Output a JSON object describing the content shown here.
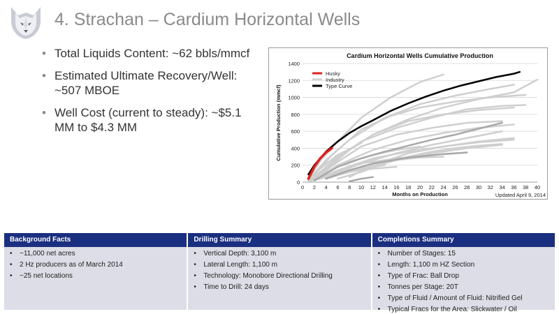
{
  "slide": {
    "title": "4. Strachan – Cardium Horizontal Wells",
    "bullets": [
      "Total Liquids Content: ~62 bbls/mmcf",
      "Estimated Ultimate Recovery/Well: ~507 MBOE",
      "Well Cost (current to steady): ~$5.1 MM to $4.3 MM"
    ],
    "logo_icon": "husky-dog-logo"
  },
  "chart_data": {
    "type": "line",
    "title": "Cardium Horizontal Wells Cumulative Production",
    "xlabel": "Months on Production",
    "ylabel": "Cumulative Production (mmcf)",
    "xlim": [
      0,
      40
    ],
    "ylim": [
      0,
      1400
    ],
    "xticks": [
      0,
      2,
      4,
      6,
      8,
      10,
      12,
      14,
      16,
      18,
      20,
      22,
      24,
      26,
      28,
      30,
      32,
      34,
      36,
      38,
      40
    ],
    "yticks": [
      0,
      200,
      400,
      600,
      800,
      1000,
      1200,
      1400
    ],
    "grid": true,
    "legend_position": "top-left",
    "footnote": "Updated April 9, 2014",
    "series": [
      {
        "name": "Husky",
        "color": "#e0201c",
        "width": 3.5,
        "x": [
          1,
          2,
          3,
          4,
          5
        ],
        "y": [
          40,
          180,
          280,
          350,
          400
        ]
      },
      {
        "name": "Industry",
        "color": "#cfcfcf",
        "width": 2.5,
        "lines": [
          {
            "x": [
              1,
              3,
              6,
              10,
              15,
              20,
              24
            ],
            "y": [
              30,
              250,
              480,
              760,
              1000,
              1180,
              1270
            ]
          },
          {
            "x": [
              1,
              4,
              8,
              14,
              20,
              26,
              32,
              36
            ],
            "y": [
              20,
              260,
              500,
              760,
              920,
              1020,
              1100,
              1150
            ]
          },
          {
            "x": [
              2,
              5,
              10,
              15,
              20,
              26,
              32,
              38
            ],
            "y": [
              80,
              320,
              620,
              780,
              880,
              950,
              1000,
              1030
            ]
          },
          {
            "x": [
              2,
              6,
              12,
              18,
              24,
              30,
              36
            ],
            "y": [
              60,
              300,
              560,
              720,
              800,
              850,
              880
            ]
          },
          {
            "x": [
              2,
              6,
              10,
              16,
              22,
              28,
              34,
              38
            ],
            "y": [
              40,
              280,
              480,
              640,
              760,
              860,
              900,
              910
            ]
          },
          {
            "x": [
              4,
              8,
              12,
              18,
              24,
              30,
              36,
              40
            ],
            "y": [
              150,
              380,
              560,
              740,
              880,
              980,
              1060,
              1210
            ]
          },
          {
            "x": [
              2,
              6,
              10,
              16,
              22,
              28,
              34
            ],
            "y": [
              40,
              240,
              420,
              560,
              640,
              700,
              720
            ]
          },
          {
            "x": [
              2,
              6,
              12,
              18,
              24,
              30,
              36
            ],
            "y": [
              30,
              200,
              380,
              500,
              580,
              640,
              680
            ]
          },
          {
            "x": [
              4,
              10,
              16,
              22,
              28,
              34
            ],
            "y": [
              60,
              220,
              340,
              440,
              520,
              600
            ]
          },
          {
            "x": [
              2,
              6,
              12,
              18,
              24,
              30,
              36
            ],
            "y": [
              20,
              140,
              280,
              360,
              420,
              470,
              500
            ]
          },
          {
            "x": [
              4,
              10,
              16,
              22,
              28,
              34
            ],
            "y": [
              40,
              160,
              260,
              340,
              400,
              440
            ]
          },
          {
            "x": [
              1,
              4,
              8,
              12,
              16,
              20
            ],
            "y": [
              20,
              120,
              240,
              320,
              380,
              420
            ]
          },
          {
            "x": [
              2,
              6,
              10,
              16,
              22,
              28
            ],
            "y": [
              20,
              120,
              220,
              280,
              320,
              350
            ]
          },
          {
            "x": [
              4,
              8,
              12,
              16,
              20,
              24
            ],
            "y": [
              40,
              140,
              220,
              260,
              290,
              300
            ]
          },
          {
            "x": [
              6,
              10,
              14,
              18,
              22,
              26,
              30,
              34
            ],
            "y": [
              40,
              120,
              220,
              300,
              360,
              400,
              430,
              450
            ]
          },
          {
            "x": [
              8,
              12,
              18,
              24,
              30,
              36
            ],
            "y": [
              60,
              200,
              340,
              420,
              480,
              520
            ]
          },
          {
            "x": [
              1,
              3,
              6,
              10
            ],
            "y": [
              20,
              160,
              320,
              460
            ]
          },
          {
            "x": [
              2,
              6,
              10,
              14
            ],
            "y": [
              20,
              100,
              160,
              200
            ]
          },
          {
            "x": [
              1,
              4,
              8,
              12,
              16
            ],
            "y": [
              10,
              60,
              120,
              160,
              180
            ]
          }
        ],
        "dark_lines": [
          {
            "x": [
              2,
              6,
              10,
              14,
              18,
              22,
              26,
              30,
              34
            ],
            "y": [
              20,
              180,
              280,
              360,
              430,
              500,
              560,
              630,
              700
            ]
          },
          {
            "x": [
              4,
              8,
              12,
              18,
              24,
              28
            ],
            "y": [
              40,
              140,
              220,
              290,
              330,
              350
            ]
          },
          {
            "x": [
              8,
              10,
              12
            ],
            "y": [
              10,
              40,
              60
            ]
          }
        ]
      },
      {
        "name": "Type Curve",
        "color": "#000000",
        "width": 2.5,
        "x": [
          1,
          2,
          4,
          6,
          8,
          10,
          12,
          15,
          18,
          21,
          24,
          27,
          30,
          33,
          36,
          37
        ],
        "y": [
          90,
          200,
          360,
          480,
          580,
          660,
          730,
          840,
          930,
          1010,
          1080,
          1140,
          1190,
          1240,
          1280,
          1300
        ]
      }
    ]
  },
  "facts": {
    "background": {
      "header": "Background Facts",
      "items": [
        "~11,000 net acres",
        "2 Hz producers as of March 2014",
        "~25 net locations"
      ]
    },
    "drilling": {
      "header": "Drilling Summary",
      "items": [
        "Vertical Depth: 3,100 m",
        "Lateral Length: 1,100 m",
        "Technology: Monobore Directional Drilling",
        "Time to Drill: 24 days"
      ]
    },
    "completions": {
      "header": "Completions Summary",
      "items": [
        "Number of Stages: 15",
        "Length: 1,100 m HZ Section",
        "Type of Frac: Ball Drop",
        "Tonnes per Stage: 20T",
        "Type of Fluid / Amount of Fluid: Nitrified Gel",
        "Typical Fracs for the Area: Slickwater / Oil"
      ]
    }
  }
}
